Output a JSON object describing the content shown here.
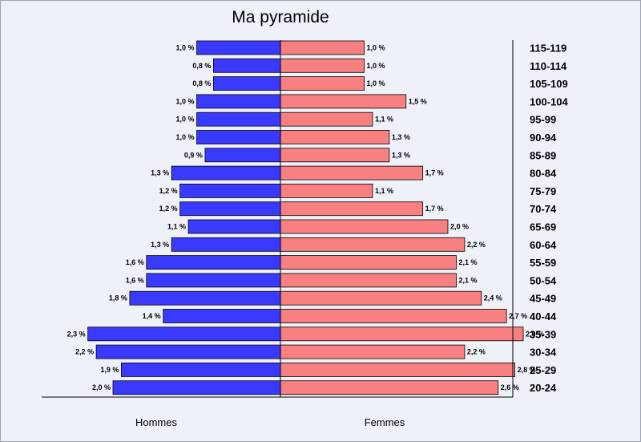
{
  "chart_data": {
    "type": "bar",
    "title": "Ma pyramide",
    "left_label": "Hommes",
    "right_label": "Femmes",
    "colors": {
      "hommes": "#3a3aff",
      "femmes": "#f88080"
    },
    "categories": [
      "115-119",
      "110-114",
      "105-109",
      "100-104",
      "95-99",
      "90-94",
      "85-89",
      "80-84",
      "75-79",
      "70-74",
      "65-69",
      "60-64",
      "55-59",
      "50-54",
      "45-49",
      "40-44",
      "35-39",
      "30-34",
      "25-29",
      "20-24"
    ],
    "series": [
      {
        "name": "Hommes",
        "values": [
          1.0,
          0.8,
          0.8,
          1.0,
          1.0,
          1.0,
          0.9,
          1.3,
          1.2,
          1.2,
          1.1,
          1.3,
          1.6,
          1.6,
          1.8,
          1.4,
          2.3,
          2.2,
          1.9,
          2.0
        ],
        "labels": [
          "1,0 %",
          "0,8 %",
          "0,8 %",
          "1,0 %",
          "1,0 %",
          "1,0 %",
          "0,9 %",
          "1,3 %",
          "1,2 %",
          "1,2 %",
          "1,1 %",
          "1,3 %",
          "1,6 %",
          "1,6 %",
          "1,8 %",
          "1,4 %",
          "2,3 %",
          "2,2 %",
          "1,9 %",
          "2,0 %"
        ]
      },
      {
        "name": "Femmes",
        "values": [
          1.0,
          1.0,
          1.0,
          1.5,
          1.1,
          1.3,
          1.3,
          1.7,
          1.1,
          1.7,
          2.0,
          2.2,
          2.1,
          2.1,
          2.4,
          2.7,
          2.9,
          2.2,
          2.8,
          2.6
        ],
        "labels": [
          "1,0 %",
          "1,0 %",
          "1,0 %",
          "1,5 %",
          "1,1 %",
          "1,3 %",
          "1,3 %",
          "1,7 %",
          "1,1 %",
          "1,7 %",
          "2,0 %",
          "2,2 %",
          "2,1 %",
          "2,1 %",
          "2,4 %",
          "2,7 %",
          "2,9 %",
          "2,2 %",
          "2,8 %",
          "2,6 %"
        ]
      }
    ]
  }
}
